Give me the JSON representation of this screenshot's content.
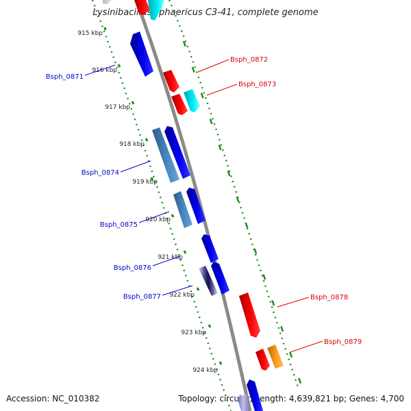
{
  "title": "Lysinibacillus sphaericus C3-41, complete genome",
  "accession": "Accession: NC_010382",
  "stats": "Topology: circular; Length: 4,639,821 bp; Genes: 4,700",
  "colors": {
    "backbone": "#8a8a8a",
    "tick_marks": "#1a8c1a",
    "forward_cds": "#0000e0",
    "reverse_cds": "#ee0000",
    "steelblue_cds": "#3a78b0",
    "cyan_cds": "#00e0e8",
    "orange_cds": "#ff9900",
    "dark_navy_cds": "#1a1a70",
    "left_label_color": "#0000cc",
    "right_label_color": "#dd0000"
  },
  "ticks": [
    "915 kbp",
    "916 kbp",
    "917 kbp",
    "918 kbp",
    "919 kbp",
    "920 kbp",
    "921 kbp",
    "922 kbp",
    "923 kbp",
    "924 kbp"
  ],
  "gene_labels_left": [
    "Bsph_0871",
    "Bsph_0874",
    "Bsph_0875",
    "Bsph_0876",
    "Bsph_0877"
  ],
  "gene_labels_right": [
    "Bsph_0872",
    "Bsph_0873",
    "Bsph_0878",
    "Bsph_0879"
  ]
}
